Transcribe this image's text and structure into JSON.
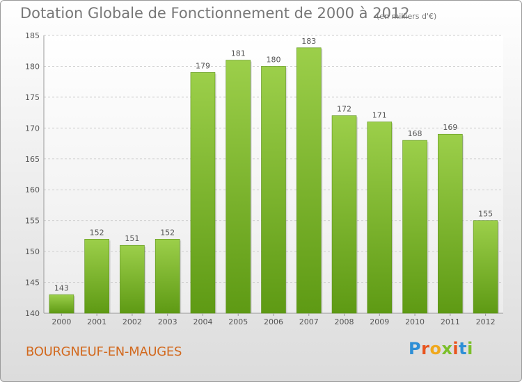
{
  "header": {
    "title": "Dotation Globale de Fonctionnement de 2000 à 2012",
    "unit": "(en milliers d'€)"
  },
  "footer": {
    "city": "BOURGNEUF-EN-MAUGES",
    "logo_letters": [
      "P",
      "r",
      "o",
      "x",
      "i",
      "t",
      "i"
    ],
    "logo_colors": [
      "#2e8fd6",
      "#e8541e",
      "#f0a81c",
      "#7bbf2a",
      "#e8541e",
      "#2e8fd6",
      "#7bbf2a"
    ]
  },
  "chart_data": {
    "type": "bar",
    "title": "Dotation Globale de Fonctionnement de 2000 à 2012",
    "subtitle": "(en milliers d'€)",
    "categories": [
      "2000",
      "2001",
      "2002",
      "2003",
      "2004",
      "2005",
      "2006",
      "2007",
      "2008",
      "2009",
      "2010",
      "2011",
      "2012"
    ],
    "values": [
      143,
      152,
      151,
      152,
      179,
      181,
      180,
      183,
      172,
      171,
      168,
      169,
      155
    ],
    "ylim": [
      140,
      185
    ],
    "yticks": [
      140,
      145,
      150,
      155,
      160,
      165,
      170,
      175,
      180,
      185
    ],
    "grid": true,
    "bar_color_top": "#9ccf4a",
    "bar_color_bottom": "#5e9a14"
  }
}
